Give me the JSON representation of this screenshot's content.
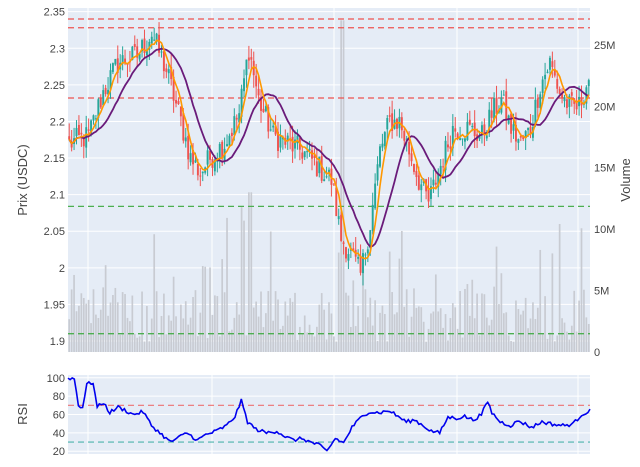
{
  "chart_data": {
    "type": "candlestick",
    "panels": [
      "price",
      "rsi"
    ],
    "price": {
      "ylabel": "Prix (USDC)",
      "y2label": "Volume",
      "ylim": [
        1.885,
        2.355
      ],
      "yticks": [
        "1.9",
        "1.95",
        "2",
        "2.05",
        "2.1",
        "2.15",
        "2.2",
        "2.25",
        "2.3",
        "2.35"
      ],
      "y2lim": [
        0,
        28000000
      ],
      "y2ticks": [
        {
          "value": 0,
          "label": "0"
        },
        {
          "value": 5000000,
          "label": "5M"
        },
        {
          "value": 10000000,
          "label": "10M"
        },
        {
          "value": 15000000,
          "label": "15M"
        },
        {
          "value": 20000000,
          "label": "20M"
        },
        {
          "value": 25000000,
          "label": "25M"
        }
      ],
      "hlines": [
        {
          "value": 2.34,
          "color": "#ef5350"
        },
        {
          "value": 2.328,
          "color": "#ef5350"
        },
        {
          "value": 2.232,
          "color": "#ef5350"
        },
        {
          "value": 2.084,
          "color": "#4caf50"
        },
        {
          "value": 1.91,
          "color": "#4caf50"
        }
      ],
      "up_color": "#26a69a",
      "down_color": "#ef5350",
      "ma_fast_color": "#ff9800",
      "ma_slow_color": "#6a1b7a",
      "volume_color": "#c8cbd2",
      "anchors": [
        [
          0,
          2.17
        ],
        [
          8,
          2.18
        ],
        [
          14,
          2.24
        ],
        [
          20,
          2.28
        ],
        [
          28,
          2.29
        ],
        [
          34,
          2.32
        ],
        [
          40,
          2.27
        ],
        [
          46,
          2.2
        ],
        [
          50,
          2.15
        ],
        [
          54,
          2.13
        ],
        [
          58,
          2.15
        ],
        [
          64,
          2.17
        ],
        [
          70,
          2.21
        ],
        [
          74,
          2.3
        ],
        [
          78,
          2.23
        ],
        [
          84,
          2.18
        ],
        [
          90,
          2.17
        ],
        [
          96,
          2.16
        ],
        [
          102,
          2.14
        ],
        [
          108,
          2.12
        ],
        [
          112,
          2.04
        ],
        [
          116,
          2.02
        ],
        [
          120,
          1.99
        ],
        [
          124,
          2.06
        ],
        [
          128,
          2.16
        ],
        [
          132,
          2.2
        ],
        [
          136,
          2.2
        ],
        [
          140,
          2.16
        ],
        [
          144,
          2.12
        ],
        [
          148,
          2.09
        ],
        [
          152,
          2.13
        ],
        [
          158,
          2.19
        ],
        [
          164,
          2.19
        ],
        [
          170,
          2.18
        ],
        [
          174,
          2.21
        ],
        [
          178,
          2.23
        ],
        [
          182,
          2.19
        ],
        [
          186,
          2.17
        ],
        [
          190,
          2.19
        ],
        [
          194,
          2.25
        ],
        [
          198,
          2.28
        ],
        [
          202,
          2.24
        ],
        [
          206,
          2.22
        ],
        [
          210,
          2.22
        ],
        [
          214,
          2.26
        ]
      ],
      "candle_count": 215
    },
    "rsi": {
      "ylabel": "RSI",
      "ylim": [
        17,
        103
      ],
      "yticks": [
        "20",
        "40",
        "60",
        "80",
        "100"
      ],
      "hlines": [
        {
          "value": 70,
          "color": "#ef5350"
        },
        {
          "value": 30,
          "color": "#26a69a"
        }
      ],
      "line_color": "#0000ee",
      "anchors": [
        [
          0,
          100
        ],
        [
          3,
          99
        ],
        [
          5,
          70
        ],
        [
          7,
          68
        ],
        [
          9,
          93
        ],
        [
          12,
          95
        ],
        [
          14,
          68
        ],
        [
          17,
          73
        ],
        [
          20,
          62
        ],
        [
          24,
          68
        ],
        [
          27,
          65
        ],
        [
          31,
          60
        ],
        [
          36,
          63
        ],
        [
          40,
          48
        ],
        [
          45,
          38
        ],
        [
          49,
          30
        ],
        [
          53,
          35
        ],
        [
          57,
          40
        ],
        [
          62,
          32
        ],
        [
          66,
          38
        ],
        [
          71,
          42
        ],
        [
          76,
          48
        ],
        [
          80,
          58
        ],
        [
          83,
          75
        ],
        [
          86,
          52
        ],
        [
          90,
          44
        ],
        [
          95,
          40
        ],
        [
          100,
          42
        ],
        [
          104,
          36
        ],
        [
          108,
          32
        ],
        [
          112,
          34
        ],
        [
          116,
          30
        ],
        [
          120,
          27
        ],
        [
          124,
          20
        ],
        [
          128,
          34
        ],
        [
          132,
          29
        ],
        [
          136,
          46
        ],
        [
          140,
          56
        ],
        [
          144,
          63
        ],
        [
          149,
          62
        ],
        [
          154,
          64
        ],
        [
          158,
          58
        ],
        [
          162,
          52
        ],
        [
          166,
          54
        ],
        [
          170,
          48
        ],
        [
          174,
          42
        ],
        [
          178,
          40
        ],
        [
          182,
          57
        ],
        [
          186,
          56
        ],
        [
          190,
          58
        ],
        [
          194,
          54
        ],
        [
          198,
          60
        ],
        [
          201,
          74
        ],
        [
          203,
          62
        ],
        [
          207,
          52
        ],
        [
          212,
          48
        ],
        [
          216,
          53
        ],
        [
          222,
          46
        ],
        [
          227,
          52
        ],
        [
          233,
          49
        ],
        [
          238,
          48
        ],
        [
          242,
          50
        ],
        [
          246,
          60
        ],
        [
          250,
          64
        ]
      ],
      "point_count": 251
    }
  }
}
